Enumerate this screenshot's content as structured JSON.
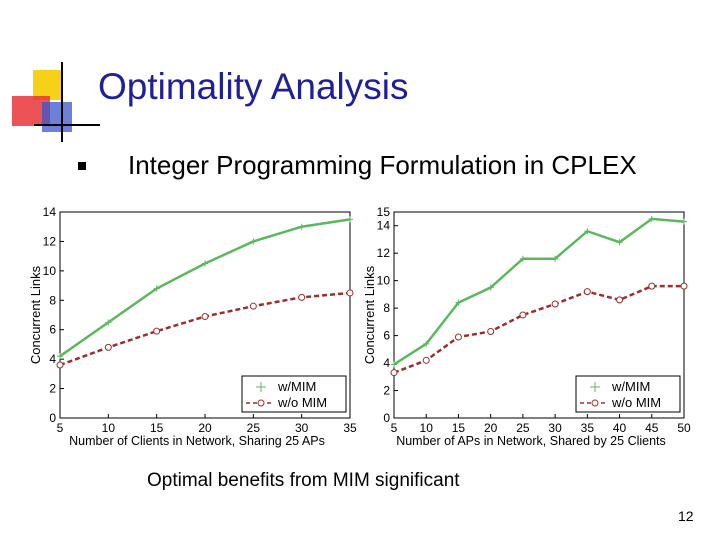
{
  "slide": {
    "title": "Optimality Analysis",
    "bullet": "Integer Programming Formulation in CPLEX",
    "caption": "Optimal benefits from MIM significant",
    "page_number": "12",
    "colors": {
      "title": "#1f1f99",
      "logo_yellow": "#f7d117",
      "logo_red": "#e8353a",
      "logo_blue": "#3a55c8",
      "with_mim": "#5cb85c",
      "without_mim": "#9b2e2e"
    }
  },
  "chart_data": [
    {
      "type": "line",
      "xlabel": "Number of Clients in Network, Sharing 25 APs",
      "ylabel": "Concurrent Links",
      "xlim": [
        5,
        35
      ],
      "ylim": [
        0,
        14
      ],
      "xticks": [
        "5",
        "10",
        "15",
        "20",
        "25",
        "30",
        "35"
      ],
      "yticks": [
        "0",
        "2",
        "4",
        "6",
        "8",
        "10",
        "12",
        "14"
      ],
      "x": [
        5,
        10,
        15,
        20,
        25,
        30,
        35
      ],
      "series": [
        {
          "name": "w/MIM",
          "values": [
            4.2,
            6.5,
            8.8,
            10.5,
            12.0,
            13.0,
            13.5
          ]
        },
        {
          "name": "w/o MIM",
          "values": [
            3.6,
            4.8,
            5.9,
            6.9,
            7.6,
            8.2,
            8.5
          ]
        }
      ],
      "legend": "bottom-right"
    },
    {
      "type": "line",
      "xlabel": "Number of APs in Network, Shared by 25 Clients",
      "ylabel": "Concurrent Links",
      "xlim": [
        5,
        50
      ],
      "ylim": [
        0,
        15
      ],
      "xticks": [
        "5",
        "10",
        "15",
        "20",
        "25",
        "30",
        "35",
        "40",
        "45",
        "50"
      ],
      "yticks": [
        "0",
        "2",
        "4",
        "6",
        "8",
        "10",
        "12",
        "14",
        "15"
      ],
      "x": [
        5,
        10,
        15,
        20,
        25,
        30,
        35,
        40,
        45,
        50
      ],
      "series": [
        {
          "name": "w/MIM",
          "values": [
            3.9,
            5.4,
            8.4,
            9.5,
            11.6,
            11.6,
            13.6,
            12.8,
            14.5,
            14.3
          ]
        },
        {
          "name": "w/o MIM",
          "values": [
            3.3,
            4.2,
            5.9,
            6.3,
            7.5,
            8.3,
            9.2,
            8.6,
            9.6,
            9.6
          ]
        }
      ],
      "legend": "bottom-right"
    }
  ]
}
